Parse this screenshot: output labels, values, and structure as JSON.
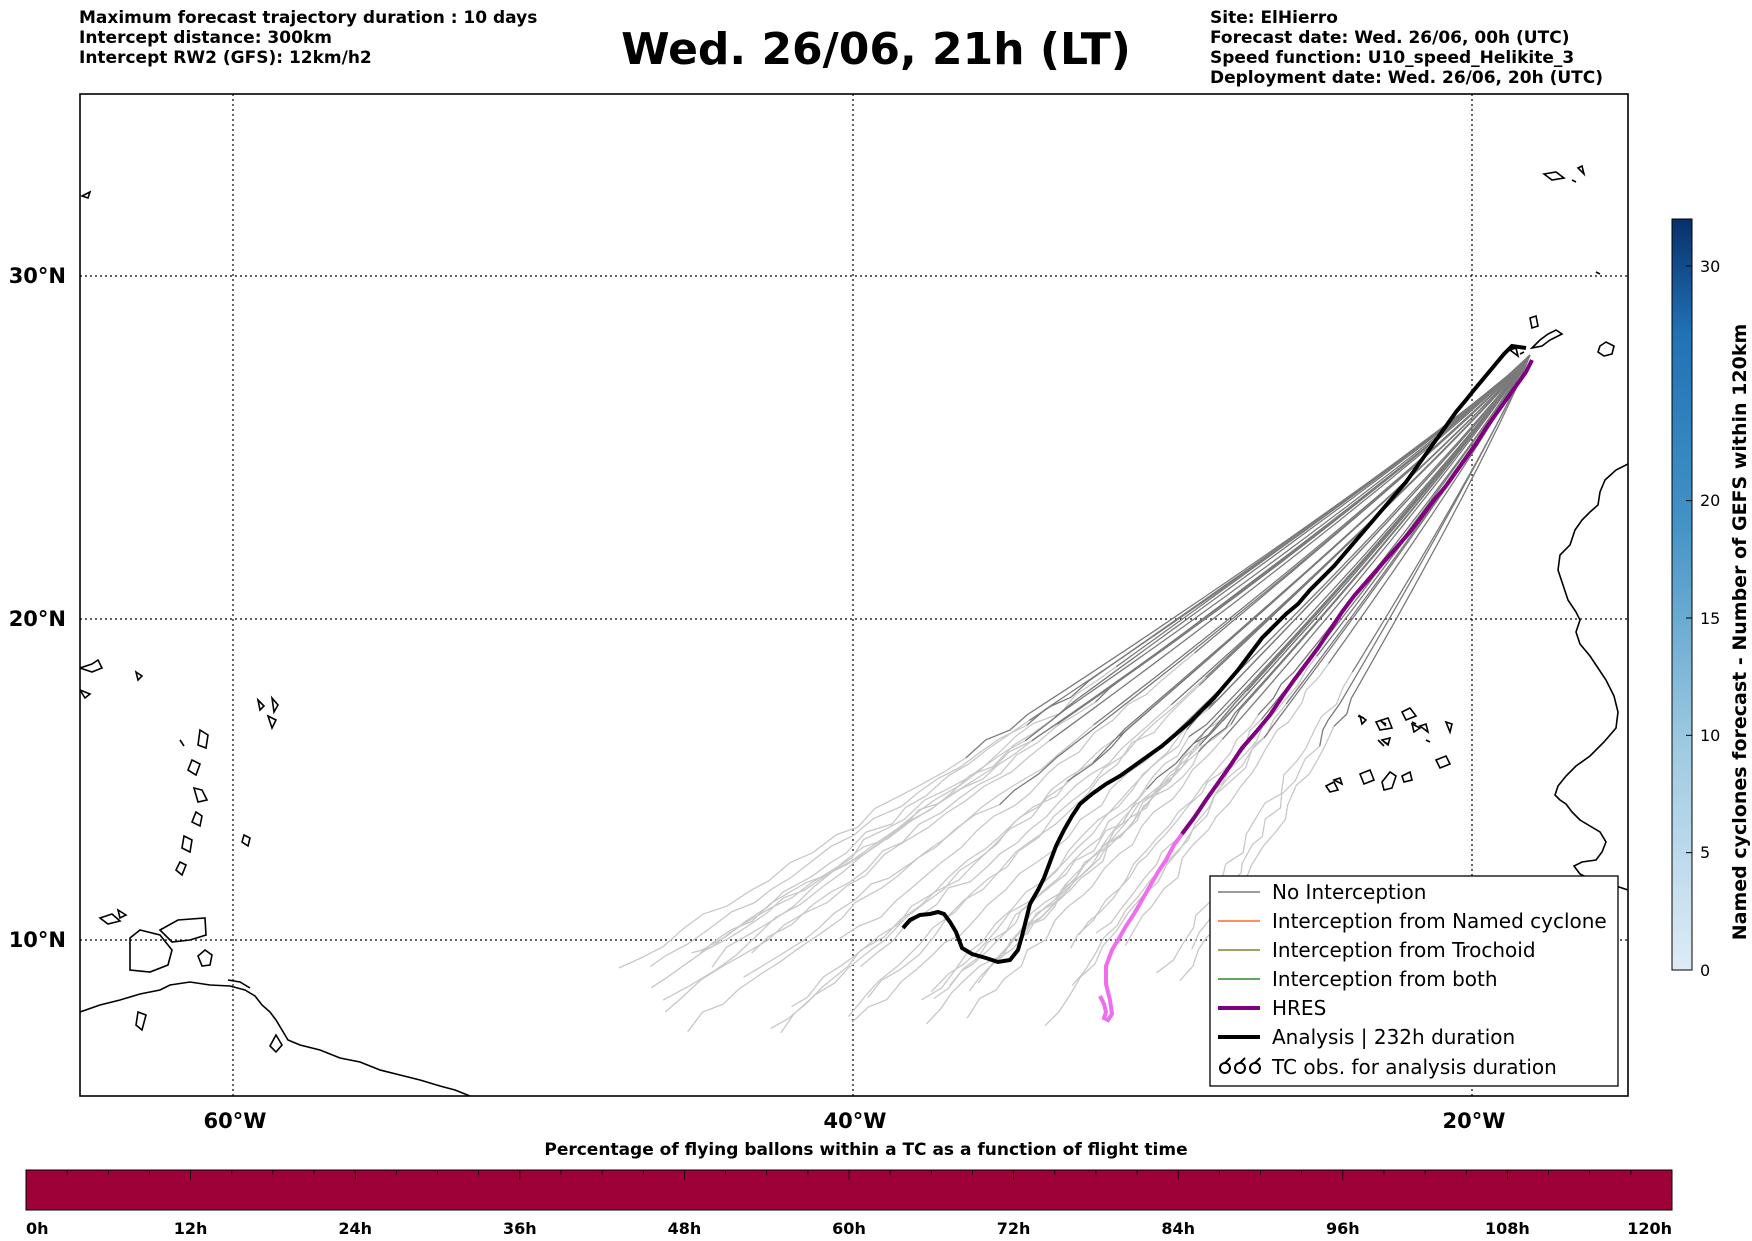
{
  "header": {
    "title": "Wed. 26/06, 21h (LT)",
    "left_lines": [
      "Maximum forecast trajectory duration : 10 days",
      "Intercept distance: 300km",
      "Intercept RW2 (GFS):  12km/h2"
    ],
    "right_lines": [
      "Site: ElHierro",
      "Forecast date: Wed. 26/06, 00h (UTC)",
      "Speed function: U10_speed_Helikite_3",
      "Deployment date: Wed. 26/06, 20h (UTC)"
    ]
  },
  "map": {
    "lat_labels": [
      "30°N",
      "20°N",
      "10°N"
    ],
    "lon_labels": [
      "60°W",
      "40°W",
      "20°W"
    ],
    "lat_range": [
      5,
      35
    ],
    "lon_range": [
      -65,
      -15
    ],
    "colors": {
      "no_interception": "#7a7a7a",
      "no_interception_light": "#c8c8c8",
      "named_cyclone": "#ff6a2a",
      "trochoid": "#808030",
      "both": "#2a8a2a",
      "hres": "#800080",
      "hres_tail": "#ee6eee",
      "analysis": "#000000"
    }
  },
  "legend": {
    "items": [
      {
        "label": "No Interception",
        "icon": "line-icon"
      },
      {
        "label": "Interception from Named cyclone",
        "icon": "line-icon"
      },
      {
        "label": "Interception from Trochoid",
        "icon": "line-icon"
      },
      {
        "label": "Interception from both",
        "icon": "line-icon"
      },
      {
        "label": "HRES",
        "icon": "line-icon"
      },
      {
        "label": "Analysis | 232h duration",
        "icon": "line-icon"
      },
      {
        "label": "TC obs. for analysis duration",
        "icon": "cyclone-symbol-icon",
        "symbol": "ᶍᶍᶍ"
      }
    ]
  },
  "colorbar_right": {
    "title": "Named cyclones forecast - Number of GEFS within 120km",
    "ticks": [
      "0",
      "5",
      "10",
      "15",
      "20",
      "30"
    ],
    "range": [
      0,
      32
    ]
  },
  "bottom_bar": {
    "title": "Percentage of flying ballons within a TC as a function of flight time",
    "ticks": [
      "0h",
      "12h",
      "24h",
      "36h",
      "48h",
      "60h",
      "72h",
      "84h",
      "96h",
      "108h",
      "120h"
    ],
    "color": "#9e0038"
  }
}
